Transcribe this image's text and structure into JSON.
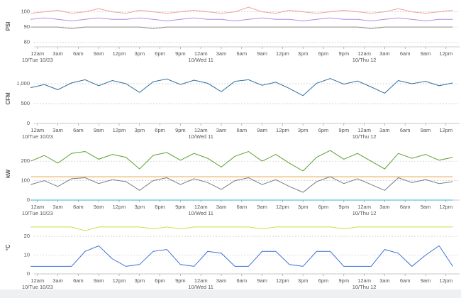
{
  "chart_data": [
    {
      "type": "line",
      "ylabel": "PSI",
      "ylabel_color": "#7a7a7a",
      "ylim": [
        77,
        104
      ],
      "yticks": [
        80,
        90,
        100
      ],
      "grid": true,
      "xlim": [
        -0.5,
        62
      ],
      "xticks": [
        {
          "value": 0,
          "label": "12am"
        },
        {
          "value": 3,
          "label": "3am"
        },
        {
          "value": 6,
          "label": "6am"
        },
        {
          "value": 9,
          "label": "9am"
        },
        {
          "value": 12,
          "label": "12pm"
        },
        {
          "value": 15,
          "label": "3pm"
        },
        {
          "value": 18,
          "label": "6pm"
        },
        {
          "value": 21,
          "label": "9pm"
        },
        {
          "value": 24,
          "label": "12am"
        },
        {
          "value": 27,
          "label": "3am"
        },
        {
          "value": 30,
          "label": "6am"
        },
        {
          "value": 33,
          "label": "9am"
        },
        {
          "value": 36,
          "label": "12pm"
        },
        {
          "value": 39,
          "label": "3pm"
        },
        {
          "value": 42,
          "label": "6pm"
        },
        {
          "value": 45,
          "label": "9pm"
        },
        {
          "value": 48,
          "label": "12am"
        },
        {
          "value": 51,
          "label": "3am"
        },
        {
          "value": 54,
          "label": "6am"
        },
        {
          "value": 57,
          "label": "9am"
        },
        {
          "value": 60,
          "label": "12pm"
        }
      ],
      "xdates": [
        {
          "value": 0,
          "label": "10/Tue 10/23"
        },
        {
          "value": 24,
          "label": "10/Wed 11"
        },
        {
          "value": 48,
          "label": "10/Thu 12"
        }
      ],
      "x": [
        -1,
        1,
        3,
        5,
        7,
        9,
        11,
        13,
        15,
        17,
        19,
        21,
        23,
        25,
        27,
        29,
        31,
        33,
        35,
        37,
        39,
        41,
        43,
        45,
        47,
        49,
        51,
        53,
        55,
        57,
        59,
        61
      ],
      "series": [
        {
          "color": "#f2a0a0",
          "values": [
            99,
            100,
            101,
            99,
            100,
            102,
            100,
            99,
            101,
            100,
            99,
            100,
            101,
            100,
            99,
            100,
            103,
            100,
            99,
            101,
            100,
            99,
            100,
            101,
            100,
            99,
            100,
            102,
            100,
            99,
            100,
            101
          ]
        },
        {
          "color": "#b58cec",
          "values": [
            95,
            96,
            95,
            94,
            95,
            96,
            95,
            95,
            96,
            95,
            94,
            95,
            96,
            95,
            95,
            94,
            95,
            96,
            95,
            95,
            94,
            95,
            96,
            95,
            95,
            94,
            95,
            96,
            95,
            94,
            95,
            95
          ]
        },
        {
          "color": "#8a8a8a",
          "values": [
            90,
            90,
            90,
            89,
            90,
            90,
            90,
            90,
            90,
            89,
            90,
            90,
            90,
            90,
            90,
            90,
            90,
            90,
            90,
            90,
            90,
            90,
            90,
            90,
            90,
            89,
            90,
            90,
            90,
            90,
            90,
            90
          ]
        }
      ]
    },
    {
      "type": "line",
      "ylabel": "CFM",
      "ylabel_color": "#1f5f9e",
      "ylim": [
        0,
        1250
      ],
      "yticks": [
        0,
        500,
        {
          "value": 1000,
          "label": "1,000"
        }
      ],
      "grid": true,
      "xlim": [
        -0.5,
        62
      ],
      "xticks": [
        {
          "value": 0,
          "label": "12am"
        },
        {
          "value": 3,
          "label": "3am"
        },
        {
          "value": 6,
          "label": "6am"
        },
        {
          "value": 9,
          "label": "9am"
        },
        {
          "value": 12,
          "label": "12pm"
        },
        {
          "value": 15,
          "label": "3pm"
        },
        {
          "value": 18,
          "label": "6pm"
        },
        {
          "value": 21,
          "label": "9pm"
        },
        {
          "value": 24,
          "label": "12am"
        },
        {
          "value": 27,
          "label": "3am"
        },
        {
          "value": 30,
          "label": "6am"
        },
        {
          "value": 33,
          "label": "9am"
        },
        {
          "value": 36,
          "label": "12pm"
        },
        {
          "value": 39,
          "label": "3pm"
        },
        {
          "value": 42,
          "label": "6pm"
        },
        {
          "value": 45,
          "label": "9pm"
        },
        {
          "value": 48,
          "label": "12am"
        },
        {
          "value": 51,
          "label": "3am"
        },
        {
          "value": 54,
          "label": "6am"
        },
        {
          "value": 57,
          "label": "9am"
        },
        {
          "value": 60,
          "label": "12pm"
        }
      ],
      "xdates": [
        {
          "value": 0,
          "label": "10/Tue 10/23"
        },
        {
          "value": 24,
          "label": "10/Wed 11"
        },
        {
          "value": 48,
          "label": "10/Thu 12"
        }
      ],
      "x": [
        -1,
        1,
        3,
        5,
        7,
        9,
        11,
        13,
        15,
        17,
        19,
        21,
        23,
        25,
        27,
        29,
        31,
        33,
        35,
        37,
        39,
        41,
        43,
        45,
        47,
        49,
        51,
        53,
        55,
        57,
        59,
        61
      ],
      "series": [
        {
          "color": "#2e6f9e",
          "values": [
            900,
            980,
            850,
            1020,
            1100,
            950,
            1080,
            1000,
            780,
            1050,
            1120,
            980,
            1090,
            1010,
            800,
            1060,
            1100,
            960,
            1040,
            880,
            700,
            1010,
            1130,
            990,
            1070,
            920,
            760,
            1080,
            1000,
            1060,
            950,
            1020
          ]
        }
      ]
    },
    {
      "type": "line",
      "ylabel": "kW",
      "ylabel_color": "#4e9a2a",
      "ylim": [
        0,
        270
      ],
      "yticks": [
        0,
        100,
        200
      ],
      "grid": true,
      "xlim": [
        -0.5,
        62
      ],
      "xticks": [
        {
          "value": 0,
          "label": "12am"
        },
        {
          "value": 3,
          "label": "3am"
        },
        {
          "value": 6,
          "label": "6am"
        },
        {
          "value": 9,
          "label": "9am"
        },
        {
          "value": 12,
          "label": "12pm"
        },
        {
          "value": 15,
          "label": "3pm"
        },
        {
          "value": 18,
          "label": "6pm"
        },
        {
          "value": 21,
          "label": "9pm"
        },
        {
          "value": 24,
          "label": "12am"
        },
        {
          "value": 27,
          "label": "3am"
        },
        {
          "value": 30,
          "label": "6am"
        },
        {
          "value": 33,
          "label": "9am"
        },
        {
          "value": 36,
          "label": "12pm"
        },
        {
          "value": 39,
          "label": "3pm"
        },
        {
          "value": 42,
          "label": "6pm"
        },
        {
          "value": 45,
          "label": "9pm"
        },
        {
          "value": 48,
          "label": "12am"
        },
        {
          "value": 51,
          "label": "3am"
        },
        {
          "value": 54,
          "label": "6am"
        },
        {
          "value": 57,
          "label": "9am"
        },
        {
          "value": 60,
          "label": "12pm"
        }
      ],
      "xdates": [
        {
          "value": 0,
          "label": "10/Tue 10/23"
        },
        {
          "value": 24,
          "label": "10/Wed 11"
        },
        {
          "value": 48,
          "label": "10/Thu 12"
        }
      ],
      "x": [
        -1,
        1,
        3,
        5,
        7,
        9,
        11,
        13,
        15,
        17,
        19,
        21,
        23,
        25,
        27,
        29,
        31,
        33,
        35,
        37,
        39,
        41,
        43,
        45,
        47,
        49,
        51,
        53,
        55,
        57,
        59,
        61
      ],
      "series": [
        {
          "color": "#5aa02c",
          "values": [
            200,
            230,
            190,
            240,
            250,
            210,
            235,
            220,
            160,
            230,
            245,
            205,
            240,
            215,
            170,
            225,
            250,
            200,
            235,
            190,
            150,
            220,
            255,
            210,
            240,
            200,
            160,
            240,
            215,
            235,
            205,
            220
          ]
        },
        {
          "color": "#e8a33d",
          "values": [
            120,
            120,
            120,
            120,
            120,
            120,
            120,
            120,
            120,
            120,
            120,
            120,
            120,
            120,
            120,
            120,
            120,
            120,
            120,
            120,
            120,
            120,
            120,
            120,
            120,
            120,
            120,
            120,
            120,
            120,
            120,
            120
          ]
        },
        {
          "color": "#6f7f8f",
          "values": [
            80,
            100,
            70,
            110,
            115,
            85,
            105,
            95,
            50,
            100,
            115,
            80,
            110,
            90,
            55,
            100,
            115,
            80,
            105,
            70,
            40,
            95,
            120,
            85,
            110,
            80,
            50,
            115,
            90,
            105,
            85,
            95
          ]
        },
        {
          "color": "#2ab7d6",
          "values": [
            0,
            0,
            0,
            0,
            0,
            0,
            0,
            0,
            0,
            0,
            0,
            0,
            0,
            0,
            0,
            0,
            0,
            0,
            0,
            0,
            0,
            0,
            0,
            0,
            0,
            0,
            0,
            0,
            0,
            0,
            0,
            0
          ]
        }
      ]
    },
    {
      "type": "line",
      "ylabel": "°C",
      "ylabel_color": "#3b6fd6",
      "ylim": [
        0,
        28
      ],
      "yticks": [
        0,
        10,
        20
      ],
      "grid": true,
      "xlim": [
        -0.5,
        62
      ],
      "xticks": [
        {
          "value": 0,
          "label": "12am"
        },
        {
          "value": 3,
          "label": "3am"
        },
        {
          "value": 6,
          "label": "6am"
        },
        {
          "value": 9,
          "label": "9am"
        },
        {
          "value": 12,
          "label": "12pm"
        },
        {
          "value": 15,
          "label": "3pm"
        },
        {
          "value": 18,
          "label": "6pm"
        },
        {
          "value": 21,
          "label": "9pm"
        },
        {
          "value": 24,
          "label": "12am"
        },
        {
          "value": 27,
          "label": "3am"
        },
        {
          "value": 30,
          "label": "6am"
        },
        {
          "value": 33,
          "label": "9am"
        },
        {
          "value": 36,
          "label": "12pm"
        },
        {
          "value": 39,
          "label": "3pm"
        },
        {
          "value": 42,
          "label": "6pm"
        },
        {
          "value": 45,
          "label": "9pm"
        },
        {
          "value": 48,
          "label": "12am"
        },
        {
          "value": 51,
          "label": "3am"
        },
        {
          "value": 54,
          "label": "6am"
        },
        {
          "value": 57,
          "label": "9am"
        },
        {
          "value": 60,
          "label": "12pm"
        }
      ],
      "xdates": [
        {
          "value": 0,
          "label": "10/Tue 10/23"
        },
        {
          "value": 24,
          "label": "10/Wed 11"
        },
        {
          "value": 48,
          "label": "10/Thu 12"
        }
      ],
      "x": [
        -1,
        1,
        3,
        5,
        7,
        9,
        11,
        13,
        15,
        17,
        19,
        21,
        23,
        25,
        27,
        29,
        31,
        33,
        35,
        37,
        39,
        41,
        43,
        45,
        47,
        49,
        51,
        53,
        55,
        57,
        59,
        61
      ],
      "series": [
        {
          "color": "#c8e04a",
          "values": [
            25,
            25,
            25,
            25,
            23,
            25,
            25,
            25,
            25,
            24,
            25,
            24,
            25,
            25,
            25,
            25,
            25,
            24,
            25,
            25,
            25,
            25,
            25,
            24,
            25,
            25,
            25,
            25,
            25,
            25,
            25,
            25
          ]
        },
        {
          "color": "#3b6fd6",
          "values": [
            4,
            4,
            4,
            4,
            12,
            15,
            8,
            4,
            5,
            12,
            13,
            5,
            4,
            12,
            11,
            4,
            4,
            12,
            12,
            5,
            4,
            12,
            12,
            4,
            4,
            4,
            13,
            11,
            4,
            10,
            15,
            4
          ]
        }
      ]
    }
  ]
}
